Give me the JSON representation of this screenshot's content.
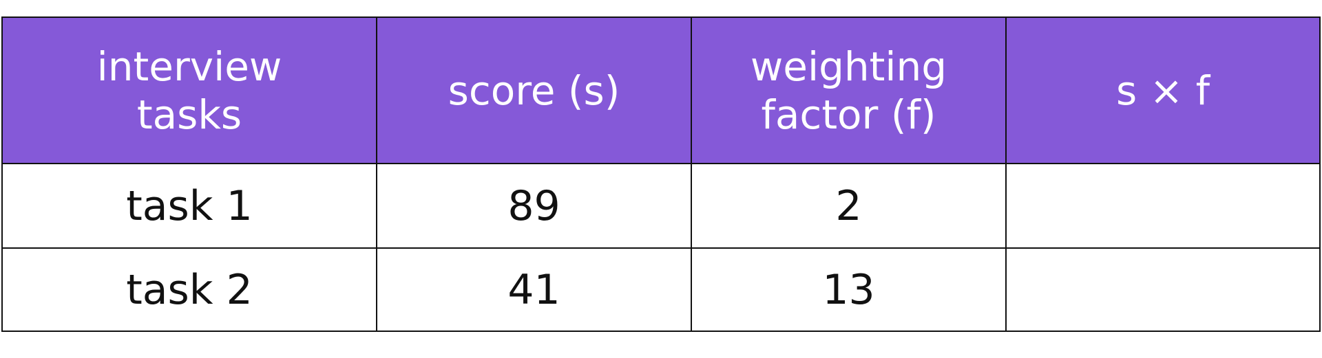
{
  "table": {
    "header": [
      [
        "interview",
        "tasks"
      ],
      [
        "score (s)"
      ],
      [
        "weighting",
        "factor (f)"
      ],
      [
        "s × f"
      ]
    ],
    "rows": [
      [
        "task 1",
        89,
        2
      ],
      [
        "task 2",
        41,
        13
      ]
    ]
  }
}
